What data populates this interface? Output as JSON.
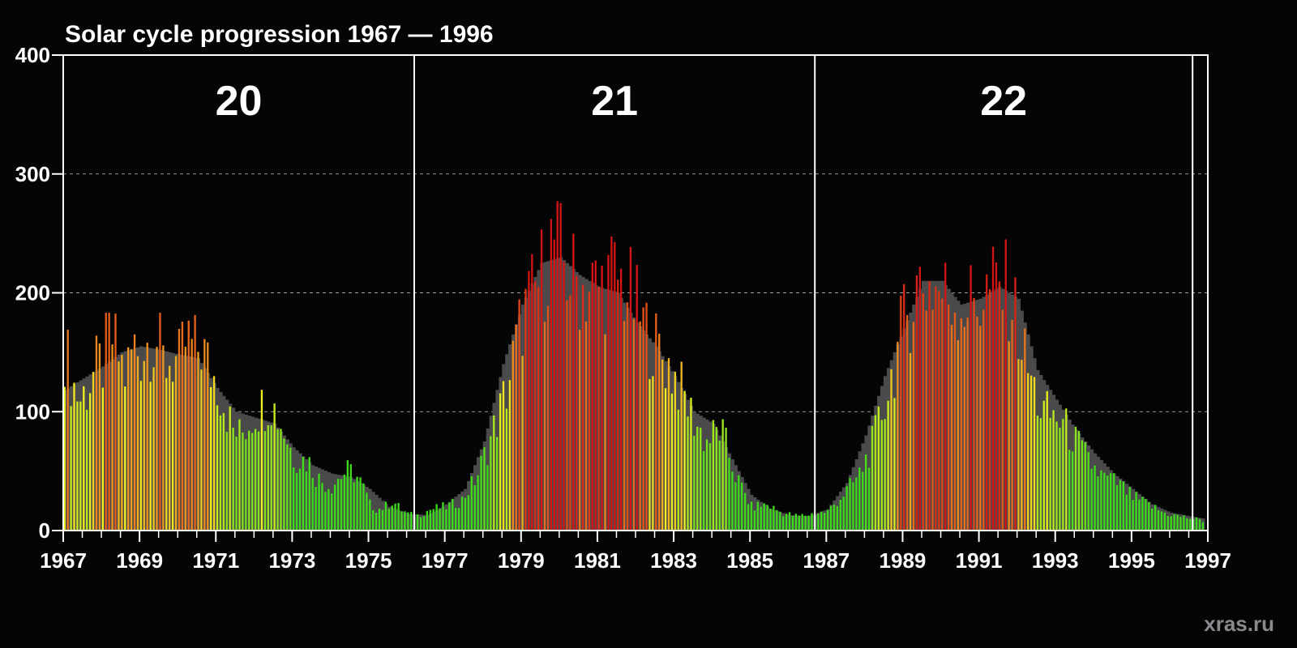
{
  "title": "Solar cycle progression   1967 — 1996",
  "watermark": "xras.ru",
  "colors": {
    "background": "#050506",
    "smoothed": "#4a4a4a",
    "low": "#3ddc1a",
    "mid": "#f2f21e",
    "high": "#f08a1e",
    "peak": "#d41414",
    "grid": "#9a9a9a",
    "axis": "#ffffff"
  },
  "chart_data": {
    "type": "bar",
    "title": "Solar cycle progression   1967 — 1996",
    "xlabel": "",
    "ylabel": "",
    "xlim": [
      1967,
      1997
    ],
    "ylim": [
      0,
      400
    ],
    "x_ticks": [
      "1967",
      "1969",
      "1971",
      "1973",
      "1975",
      "1977",
      "1979",
      "1981",
      "1983",
      "1985",
      "1987",
      "1989",
      "1991",
      "1993",
      "1995",
      "1997"
    ],
    "y_ticks": [
      "0",
      "100",
      "200",
      "300",
      "400"
    ],
    "grid": "horizontal dashed",
    "cycles": [
      {
        "label": "20",
        "start": 1967.0,
        "end": 1976.2
      },
      {
        "label": "21",
        "start": 1976.2,
        "end": 1986.7
      },
      {
        "label": "22",
        "start": 1986.7,
        "end": 1996.6
      }
    ],
    "monthly_anchors": [
      [
        1967.0,
        155
      ],
      [
        1967.2,
        125
      ],
      [
        1967.4,
        110
      ],
      [
        1967.6,
        120
      ],
      [
        1967.8,
        135
      ],
      [
        1968.0,
        140
      ],
      [
        1968.2,
        165
      ],
      [
        1968.4,
        148
      ],
      [
        1968.6,
        130
      ],
      [
        1968.8,
        155
      ],
      [
        1969.0,
        150
      ],
      [
        1969.2,
        160
      ],
      [
        1969.4,
        162
      ],
      [
        1969.6,
        140
      ],
      [
        1969.8,
        145
      ],
      [
        1970.0,
        140
      ],
      [
        1970.2,
        160
      ],
      [
        1970.4,
        152
      ],
      [
        1970.6,
        155
      ],
      [
        1970.8,
        135
      ],
      [
        1971.0,
        125
      ],
      [
        1971.2,
        105
      ],
      [
        1971.4,
        85
      ],
      [
        1971.6,
        80
      ],
      [
        1971.8,
        90
      ],
      [
        1972.0,
        100
      ],
      [
        1972.2,
        105
      ],
      [
        1972.4,
        110
      ],
      [
        1972.6,
        95
      ],
      [
        1972.8,
        80
      ],
      [
        1973.0,
        62
      ],
      [
        1973.2,
        60
      ],
      [
        1973.4,
        58
      ],
      [
        1973.6,
        45
      ],
      [
        1973.8,
        40
      ],
      [
        1974.0,
        38
      ],
      [
        1974.2,
        45
      ],
      [
        1974.4,
        50
      ],
      [
        1974.6,
        48
      ],
      [
        1974.8,
        38
      ],
      [
        1975.0,
        22
      ],
      [
        1975.2,
        18
      ],
      [
        1975.4,
        20
      ],
      [
        1975.6,
        25
      ],
      [
        1975.8,
        18
      ],
      [
        1976.0,
        14
      ],
      [
        1976.2,
        12
      ],
      [
        1976.6,
        18
      ],
      [
        1977.0,
        20
      ],
      [
        1977.4,
        25
      ],
      [
        1977.8,
        45
      ],
      [
        1978.2,
        80
      ],
      [
        1978.6,
        120
      ],
      [
        1979.0,
        180
      ],
      [
        1979.4,
        205
      ],
      [
        1979.8,
        245
      ],
      [
        1980.2,
        215
      ],
      [
        1980.6,
        205
      ],
      [
        1981.0,
        205
      ],
      [
        1981.4,
        215
      ],
      [
        1981.8,
        200
      ],
      [
        1982.2,
        170
      ],
      [
        1982.6,
        150
      ],
      [
        1983.0,
        130
      ],
      [
        1983.4,
        100
      ],
      [
        1983.8,
        75
      ],
      [
        1984.2,
        85
      ],
      [
        1984.6,
        45
      ],
      [
        1985.0,
        20
      ],
      [
        1985.4,
        22
      ],
      [
        1985.8,
        15
      ],
      [
        1986.2,
        12
      ],
      [
        1986.6,
        14
      ],
      [
        1987.0,
        16
      ],
      [
        1987.4,
        30
      ],
      [
        1987.8,
        45
      ],
      [
        1988.2,
        75
      ],
      [
        1988.6,
        120
      ],
      [
        1989.0,
        175
      ],
      [
        1989.4,
        210
      ],
      [
        1989.8,
        205
      ],
      [
        1990.2,
        195
      ],
      [
        1990.6,
        190
      ],
      [
        1991.0,
        195
      ],
      [
        1991.4,
        205
      ],
      [
        1991.8,
        200
      ],
      [
        1992.2,
        140
      ],
      [
        1992.6,
        100
      ],
      [
        1993.0,
        95
      ],
      [
        1993.4,
        80
      ],
      [
        1993.8,
        60
      ],
      [
        1994.2,
        45
      ],
      [
        1994.6,
        40
      ],
      [
        1995.0,
        28
      ],
      [
        1995.4,
        22
      ],
      [
        1995.8,
        15
      ],
      [
        1996.2,
        12
      ],
      [
        1996.6,
        10
      ],
      [
        1996.85,
        8
      ]
    ],
    "smoothed_anchors": [
      [
        1967.0,
        118
      ],
      [
        1967.5,
        128
      ],
      [
        1968.0,
        138
      ],
      [
        1968.5,
        150
      ],
      [
        1969.0,
        155
      ],
      [
        1969.5,
        152
      ],
      [
        1970.0,
        148
      ],
      [
        1970.5,
        145
      ],
      [
        1971.0,
        120
      ],
      [
        1971.5,
        100
      ],
      [
        1972.0,
        95
      ],
      [
        1972.5,
        90
      ],
      [
        1973.0,
        70
      ],
      [
        1973.5,
        55
      ],
      [
        1974.0,
        48
      ],
      [
        1974.5,
        45
      ],
      [
        1975.0,
        35
      ],
      [
        1975.5,
        20
      ],
      [
        1976.0,
        14
      ],
      [
        1976.5,
        13
      ],
      [
        1977.0,
        22
      ],
      [
        1977.5,
        35
      ],
      [
        1978.0,
        75
      ],
      [
        1978.5,
        140
      ],
      [
        1979.0,
        190
      ],
      [
        1979.5,
        225
      ],
      [
        1980.0,
        230
      ],
      [
        1980.5,
        215
      ],
      [
        1981.0,
        205
      ],
      [
        1981.5,
        200
      ],
      [
        1982.0,
        175
      ],
      [
        1982.5,
        155
      ],
      [
        1983.0,
        130
      ],
      [
        1983.5,
        100
      ],
      [
        1984.0,
        90
      ],
      [
        1984.5,
        60
      ],
      [
        1985.0,
        30
      ],
      [
        1985.5,
        18
      ],
      [
        1986.0,
        13
      ],
      [
        1986.5,
        12
      ],
      [
        1987.0,
        18
      ],
      [
        1987.5,
        40
      ],
      [
        1988.0,
        80
      ],
      [
        1988.5,
        130
      ],
      [
        1989.0,
        170
      ],
      [
        1989.5,
        210
      ],
      [
        1990.0,
        210
      ],
      [
        1990.5,
        190
      ],
      [
        1991.0,
        195
      ],
      [
        1991.5,
        205
      ],
      [
        1992.0,
        195
      ],
      [
        1992.5,
        135
      ],
      [
        1993.0,
        110
      ],
      [
        1993.5,
        85
      ],
      [
        1994.0,
        65
      ],
      [
        1994.5,
        48
      ],
      [
        1995.0,
        35
      ],
      [
        1995.5,
        22
      ],
      [
        1996.0,
        15
      ],
      [
        1996.5,
        12
      ],
      [
        1996.85,
        10
      ]
    ]
  }
}
